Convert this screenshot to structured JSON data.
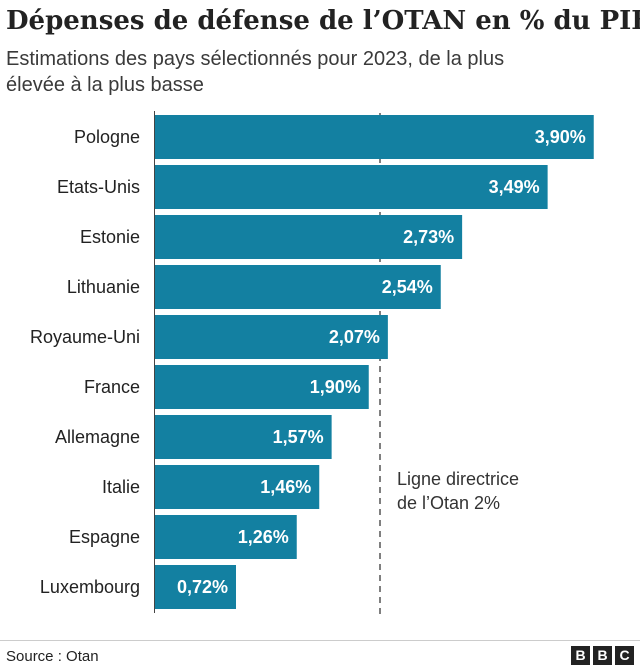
{
  "header": {
    "title": "Dépenses de défense de l’OTAN en % du PIB",
    "subtitle": "Estimations des pays sélectionnés pour 2023, de la plus élevée à la plus basse"
  },
  "chart_data": {
    "type": "bar",
    "orientation": "horizontal",
    "title": "Dépenses de défense de l’OTAN en % du PIB",
    "subtitle": "Estimations des pays sélectionnés pour 2023, de la plus élevée à la plus basse",
    "categories": [
      "Pologne",
      "Etats-Unis",
      "Estonie",
      "Lithuanie",
      "Royaume-Uni",
      "France",
      "Allemagne",
      "Italie",
      "Espagne",
      "Luxembourg"
    ],
    "values": [
      3.9,
      3.49,
      2.73,
      2.54,
      2.07,
      1.9,
      1.57,
      1.46,
      1.26,
      0.72
    ],
    "value_labels": [
      "3,90%",
      "3,49%",
      "2,73%",
      "2,54%",
      "2,07%",
      "1,90%",
      "1,57%",
      "1,46%",
      "1,26%",
      "0,72%"
    ],
    "xlim": [
      0,
      4.0
    ],
    "grid": false,
    "bar_color": "#1380a1",
    "reference_line": {
      "value": 2,
      "style": "dashed",
      "label_lines": [
        "Ligne directrice",
        "de l’Otan 2%"
      ]
    }
  },
  "footer": {
    "source": "Source : Otan",
    "logo_letters": [
      "B",
      "B",
      "C"
    ]
  }
}
